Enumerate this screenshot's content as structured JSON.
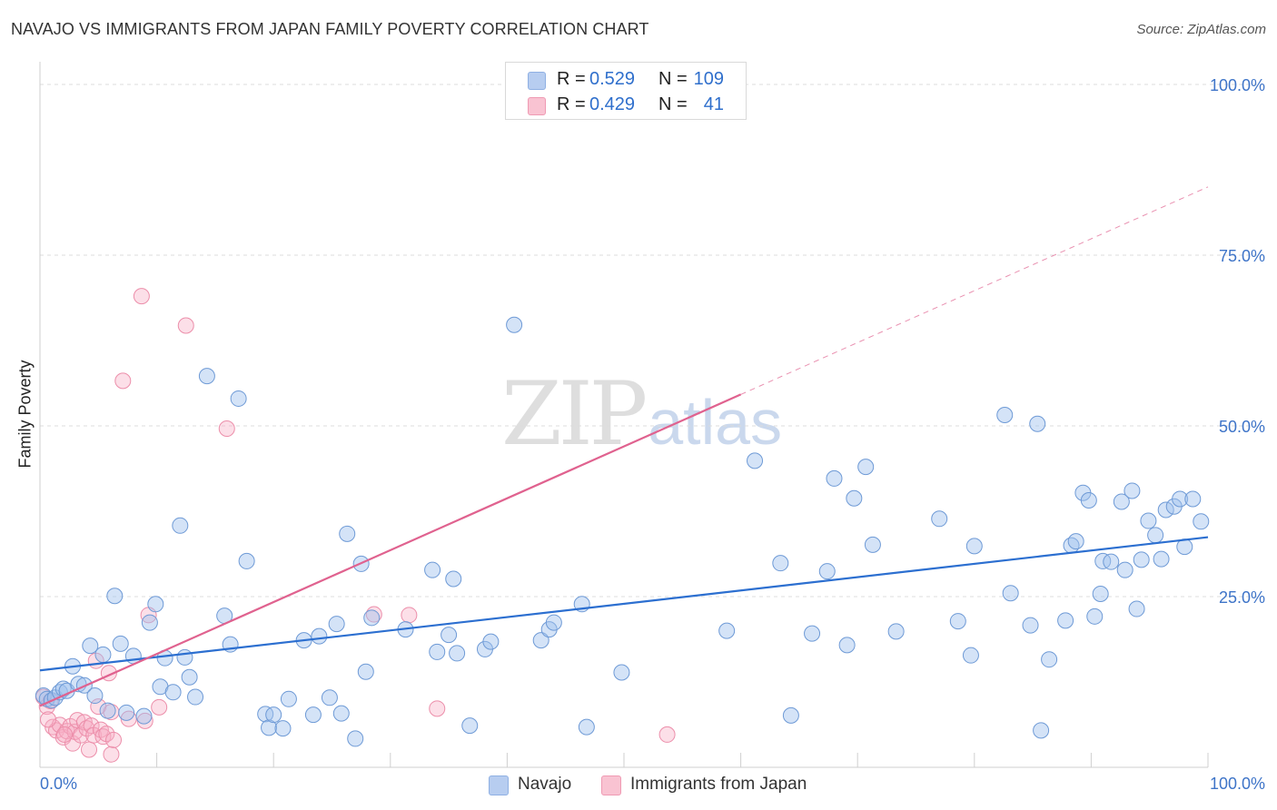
{
  "header": {
    "title": "NAVAJO VS IMMIGRANTS FROM JAPAN FAMILY POVERTY CORRELATION CHART",
    "source": "Source: ZipAtlas.com"
  },
  "watermark": {
    "zip": "ZIP",
    "atlas": "atlas"
  },
  "legend": {
    "rows": [
      {
        "r_label": "R =",
        "r_value": "0.529",
        "n_label": "N =",
        "n_value": "109",
        "color": "#b7cdf0",
        "border": "#8fb0e3"
      },
      {
        "r_label": "R =",
        "r_value": "0.429",
        "n_label": "N =",
        "n_value": "41",
        "color": "#f9c3d2",
        "border": "#ef9ab3"
      }
    ]
  },
  "bottom_legend": {
    "navajo": "Navajo",
    "japan": "Immigrants from Japan"
  },
  "colors": {
    "navajo_fill": "rgba(160,192,238,0.45)",
    "navajo_stroke": "#6e9ad6",
    "navajo_line": "#2c6fd0",
    "japan_fill": "rgba(247,176,198,0.40)",
    "japan_stroke": "#ec8eaa",
    "japan_line": "#e0628f",
    "grid": "#dcdcdc",
    "tick_text": "#3e74c8"
  },
  "chart_data": {
    "type": "scatter",
    "title": "NAVAJO VS IMMIGRANTS FROM JAPAN FAMILY POVERTY CORRELATION CHART",
    "xlabel": "",
    "ylabel": "Family Poverty",
    "xlim": [
      0,
      100
    ],
    "ylim": [
      0,
      102
    ],
    "x_tick_labels": [
      {
        "value": 0,
        "label": "0.0%"
      },
      {
        "value": 100,
        "label": "100.0%"
      }
    ],
    "y_tick_labels": [
      {
        "value": 25,
        "label": "25.0%"
      },
      {
        "value": 50,
        "label": "50.0%"
      },
      {
        "value": 75,
        "label": "75.0%"
      },
      {
        "value": 100,
        "label": "100.0%"
      }
    ],
    "series": [
      {
        "name": "Navajo",
        "r": 0.529,
        "n": 109,
        "trend": {
          "x": [
            0,
            100
          ],
          "y": [
            14.2,
            33.7
          ]
        },
        "points": [
          [
            0.3,
            10.5
          ],
          [
            0.6,
            10.0
          ],
          [
            1.0,
            9.8
          ],
          [
            1.3,
            10.2
          ],
          [
            1.7,
            11.0
          ],
          [
            2.0,
            11.5
          ],
          [
            2.3,
            11.2
          ],
          [
            2.8,
            14.8
          ],
          [
            3.3,
            12.2
          ],
          [
            3.8,
            12.0
          ],
          [
            4.3,
            17.8
          ],
          [
            4.7,
            10.5
          ],
          [
            5.4,
            16.5
          ],
          [
            5.8,
            8.3
          ],
          [
            6.4,
            25.1
          ],
          [
            6.9,
            18.1
          ],
          [
            7.4,
            8.0
          ],
          [
            8.0,
            16.3
          ],
          [
            8.9,
            7.5
          ],
          [
            9.4,
            21.2
          ],
          [
            9.9,
            23.9
          ],
          [
            10.3,
            11.8
          ],
          [
            10.7,
            16.0
          ],
          [
            11.4,
            11.0
          ],
          [
            12.0,
            35.4
          ],
          [
            12.4,
            16.1
          ],
          [
            12.8,
            13.2
          ],
          [
            13.3,
            10.3
          ],
          [
            14.3,
            57.3
          ],
          [
            15.8,
            22.2
          ],
          [
            16.3,
            18.0
          ],
          [
            17.0,
            54.0
          ],
          [
            17.7,
            30.2
          ],
          [
            19.3,
            7.8
          ],
          [
            19.6,
            5.8
          ],
          [
            20.0,
            7.7
          ],
          [
            20.8,
            5.7
          ],
          [
            21.3,
            10.0
          ],
          [
            22.6,
            18.6
          ],
          [
            23.4,
            7.7
          ],
          [
            23.9,
            19.2
          ],
          [
            24.8,
            10.2
          ],
          [
            25.4,
            21.0
          ],
          [
            25.8,
            7.9
          ],
          [
            26.3,
            34.2
          ],
          [
            27.0,
            4.2
          ],
          [
            27.5,
            29.8
          ],
          [
            27.9,
            14.0
          ],
          [
            28.4,
            21.9
          ],
          [
            31.3,
            20.2
          ],
          [
            33.6,
            28.9
          ],
          [
            34.0,
            16.9
          ],
          [
            35.0,
            19.4
          ],
          [
            35.4,
            27.6
          ],
          [
            35.7,
            16.7
          ],
          [
            36.8,
            6.1
          ],
          [
            38.1,
            17.3
          ],
          [
            38.6,
            18.4
          ],
          [
            40.6,
            64.8
          ],
          [
            42.9,
            18.6
          ],
          [
            43.6,
            20.2
          ],
          [
            44.0,
            21.2
          ],
          [
            46.4,
            23.9
          ],
          [
            46.8,
            5.9
          ],
          [
            49.8,
            13.9
          ],
          [
            58.8,
            20.0
          ],
          [
            61.2,
            44.9
          ],
          [
            63.4,
            29.9
          ],
          [
            64.3,
            7.6
          ],
          [
            66.1,
            19.6
          ],
          [
            67.4,
            28.7
          ],
          [
            68.0,
            42.3
          ],
          [
            69.1,
            17.9
          ],
          [
            69.7,
            39.4
          ],
          [
            70.7,
            44.0
          ],
          [
            71.3,
            32.6
          ],
          [
            73.3,
            19.9
          ],
          [
            77.0,
            36.4
          ],
          [
            78.6,
            21.4
          ],
          [
            79.7,
            16.4
          ],
          [
            80.0,
            32.4
          ],
          [
            82.6,
            51.6
          ],
          [
            83.1,
            25.5
          ],
          [
            84.8,
            20.8
          ],
          [
            85.4,
            50.3
          ],
          [
            85.7,
            5.4
          ],
          [
            86.4,
            15.8
          ],
          [
            87.8,
            21.5
          ],
          [
            88.3,
            32.5
          ],
          [
            88.7,
            33.1
          ],
          [
            89.3,
            40.2
          ],
          [
            89.8,
            39.1
          ],
          [
            90.3,
            22.1
          ],
          [
            90.8,
            25.4
          ],
          [
            91.0,
            30.2
          ],
          [
            91.7,
            30.1
          ],
          [
            92.6,
            38.9
          ],
          [
            92.9,
            28.9
          ],
          [
            93.5,
            40.5
          ],
          [
            93.9,
            23.2
          ],
          [
            94.3,
            30.4
          ],
          [
            94.9,
            36.1
          ],
          [
            95.5,
            34.0
          ],
          [
            96.0,
            30.5
          ],
          [
            96.4,
            37.7
          ],
          [
            97.1,
            38.2
          ],
          [
            97.6,
            39.3
          ],
          [
            98.0,
            32.3
          ],
          [
            98.7,
            39.3
          ],
          [
            99.4,
            36.0
          ]
        ]
      },
      {
        "name": "Immigrants from Japan",
        "r": 0.429,
        "n": 41,
        "trend": {
          "x": [
            0,
            60
          ],
          "y": [
            9.0,
            54.6
          ]
        },
        "trend_dashed": {
          "x": [
            60,
            100
          ],
          "y": [
            54.6,
            85.0
          ]
        },
        "points": [
          [
            0.3,
            10.3
          ],
          [
            0.6,
            8.9
          ],
          [
            0.9,
            9.7
          ],
          [
            1.1,
            5.9
          ],
          [
            1.4,
            5.4
          ],
          [
            1.7,
            6.2
          ],
          [
            2.0,
            4.4
          ],
          [
            2.3,
            5.3
          ],
          [
            2.6,
            6.0
          ],
          [
            2.8,
            3.5
          ],
          [
            3.0,
            5.2
          ],
          [
            3.2,
            6.9
          ],
          [
            3.5,
            4.7
          ],
          [
            3.8,
            6.6
          ],
          [
            4.0,
            5.7
          ],
          [
            4.2,
            2.6
          ],
          [
            4.4,
            6.1
          ],
          [
            4.6,
            4.7
          ],
          [
            4.8,
            15.6
          ],
          [
            5.0,
            8.9
          ],
          [
            5.2,
            5.5
          ],
          [
            5.4,
            4.5
          ],
          [
            5.7,
            4.9
          ],
          [
            5.9,
            13.8
          ],
          [
            6.1,
            8.1
          ],
          [
            6.1,
            1.9
          ],
          [
            6.3,
            4.0
          ],
          [
            7.1,
            56.6
          ],
          [
            7.6,
            7.1
          ],
          [
            8.7,
            69.0
          ],
          [
            9.0,
            6.8
          ],
          [
            9.3,
            22.3
          ],
          [
            10.2,
            8.8
          ],
          [
            12.5,
            64.7
          ],
          [
            16.0,
            49.6
          ],
          [
            28.6,
            22.4
          ],
          [
            31.6,
            22.3
          ],
          [
            34.0,
            8.6
          ],
          [
            53.7,
            4.8
          ],
          [
            0.7,
            7.0
          ],
          [
            2.1,
            4.8
          ]
        ]
      }
    ]
  }
}
